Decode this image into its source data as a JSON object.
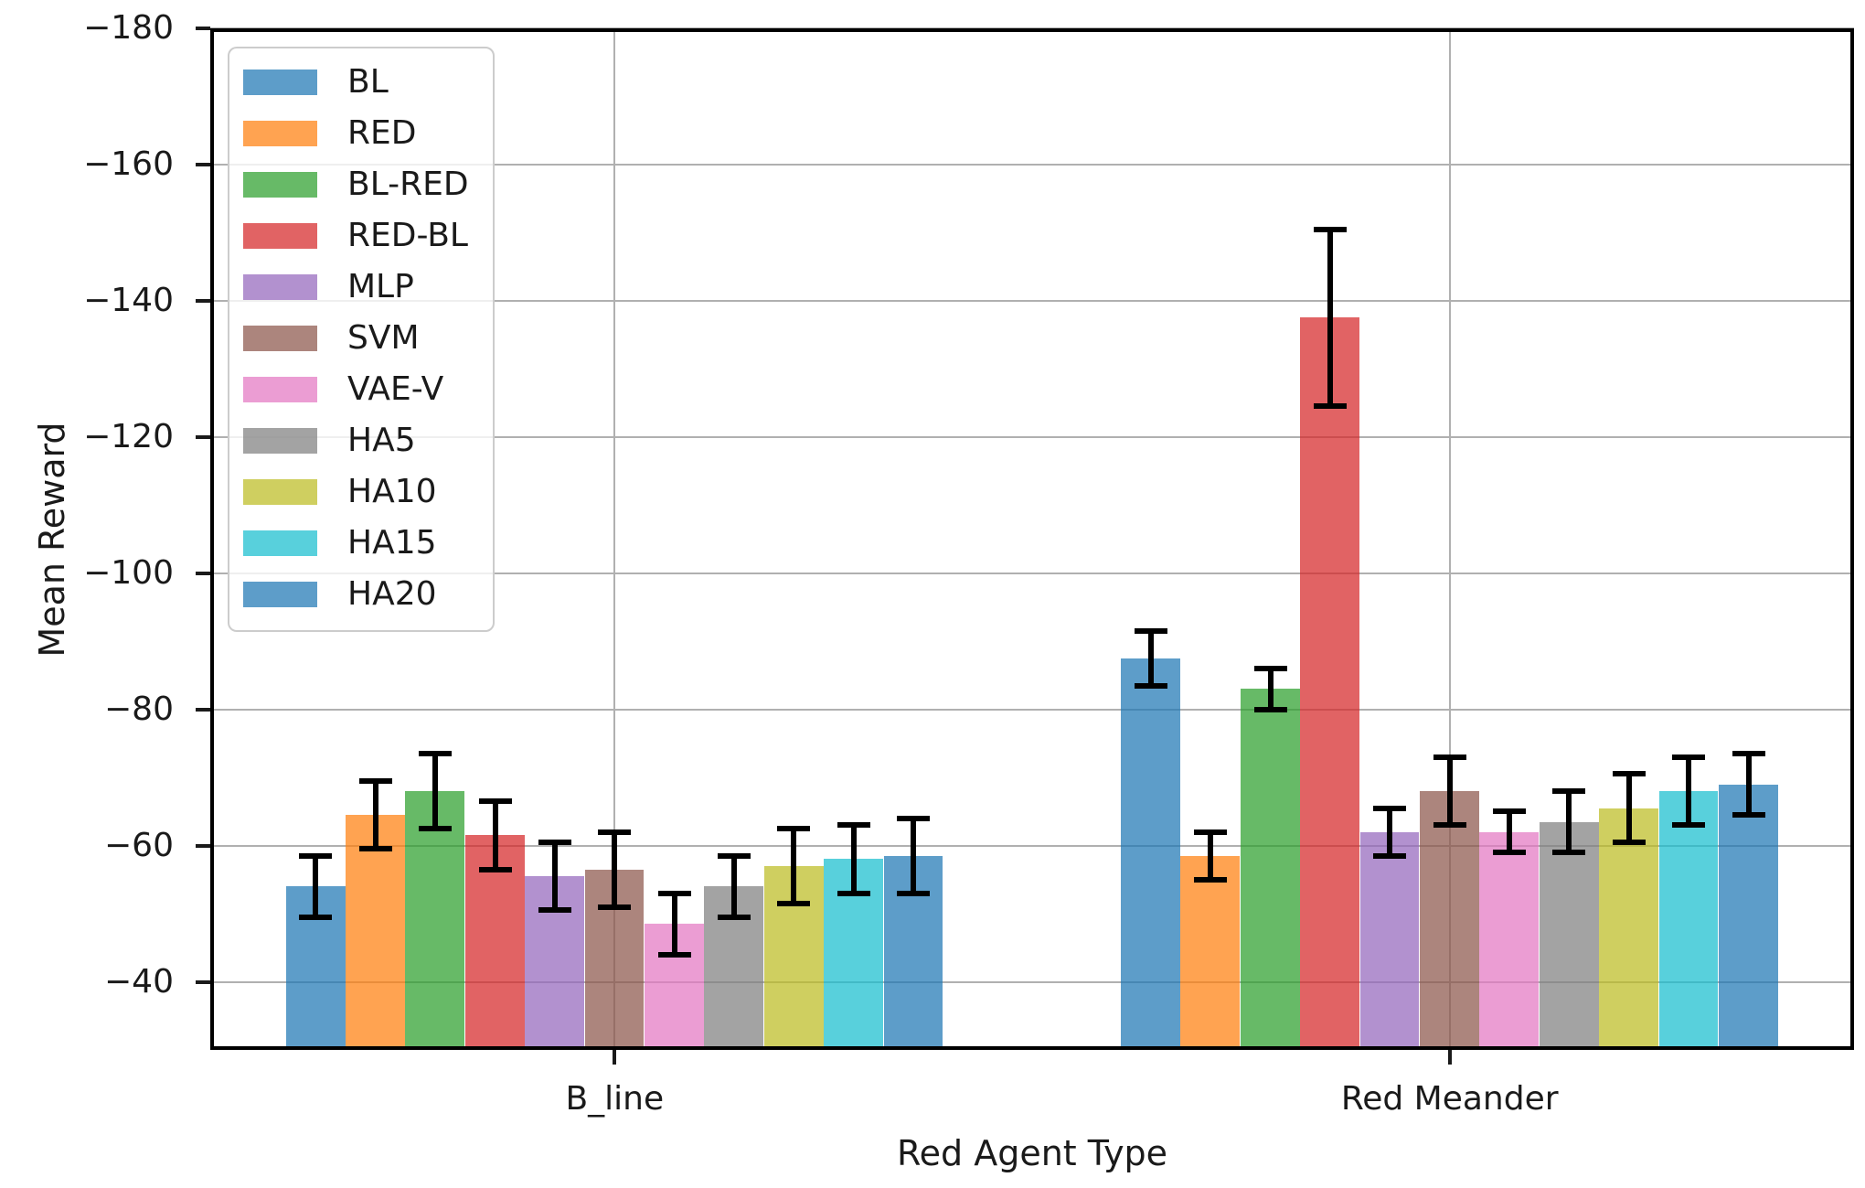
{
  "figure": {
    "background": "#ffffff"
  },
  "axes": {
    "spine_color": "#000000",
    "grid_color": "#b0b0b0",
    "tick_color": "#1a1a1a",
    "text_color": "#1a1a1a"
  },
  "chart_data": {
    "type": "bar",
    "title": "",
    "xlabel": "Red Agent Type",
    "ylabel": "Mean Reward",
    "categories": [
      "B_line",
      "Red Meander"
    ],
    "y_axis_inverted": true,
    "ylim": [
      -180,
      -30
    ],
    "yticks": [
      -180,
      -160,
      -140,
      -120,
      -100,
      -80,
      -60,
      -40
    ],
    "grid": true,
    "legend_position": "upper left",
    "error_bar_color": "#000000",
    "series": [
      {
        "name": "BL",
        "color": "rgba(31,119,180,0.72)",
        "values": [
          -54,
          -87.5
        ],
        "errors": [
          4.5,
          4
        ]
      },
      {
        "name": "RED",
        "color": "rgba(255,127,14,0.72)",
        "values": [
          -64.5,
          -58.5
        ],
        "errors": [
          5,
          3.5
        ]
      },
      {
        "name": "BL-RED",
        "color": "rgba(44,160,44,0.72)",
        "values": [
          -68,
          -83
        ],
        "errors": [
          5.5,
          3
        ]
      },
      {
        "name": "RED-BL",
        "color": "rgba(214,39,40,0.72)",
        "values": [
          -61.5,
          -137.5
        ],
        "errors": [
          5,
          13
        ]
      },
      {
        "name": "MLP",
        "color": "rgba(148,103,189,0.72)",
        "values": [
          -55.5,
          -62
        ],
        "errors": [
          5,
          3.5
        ]
      },
      {
        "name": "SVM",
        "color": "rgba(140,86,75,0.72)",
        "values": [
          -56.5,
          -68
        ],
        "errors": [
          5.5,
          5
        ]
      },
      {
        "name": "VAE-V",
        "color": "rgba(227,119,194,0.72)",
        "values": [
          -48.5,
          -62
        ],
        "errors": [
          4.5,
          3
        ]
      },
      {
        "name": "HA5",
        "color": "rgba(127,127,127,0.72)",
        "values": [
          -54,
          -63.5
        ],
        "errors": [
          4.5,
          4.5
        ]
      },
      {
        "name": "HA10",
        "color": "rgba(188,189,34,0.72)",
        "values": [
          -57,
          -65.5
        ],
        "errors": [
          5.5,
          5
        ]
      },
      {
        "name": "HA15",
        "color": "rgba(23,190,207,0.72)",
        "values": [
          -58,
          -68
        ],
        "errors": [
          5,
          5
        ]
      },
      {
        "name": "HA20",
        "color": "rgba(31,119,180,0.72)",
        "values": [
          -58.5,
          -69
        ],
        "errors": [
          5.5,
          4.5
        ]
      }
    ]
  }
}
